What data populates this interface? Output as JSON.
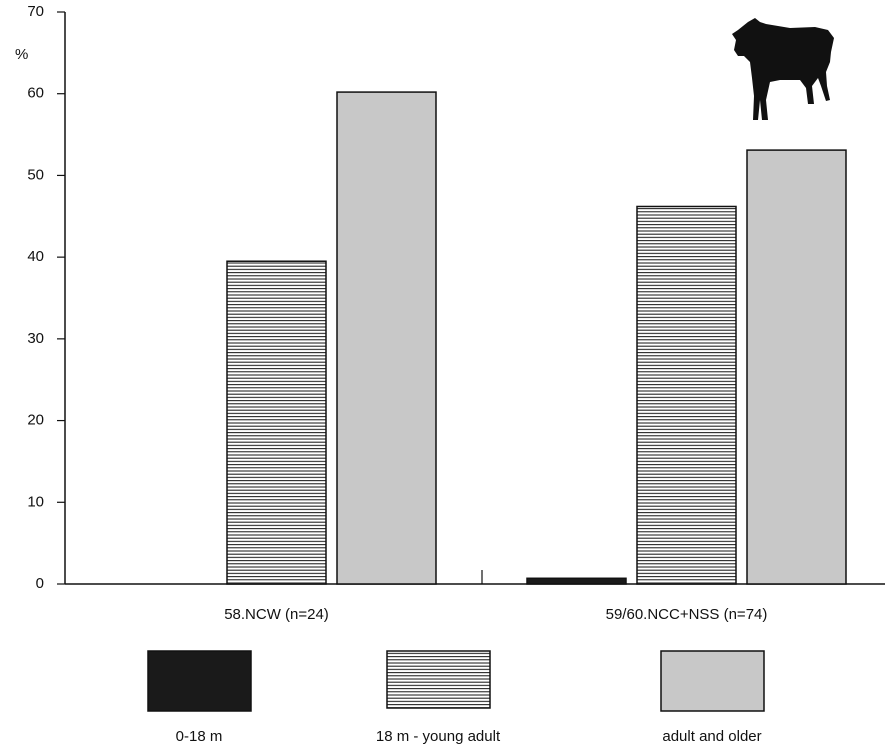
{
  "chart_data": {
    "type": "bar",
    "y_label": "%",
    "categories": [
      "58.NCW (n=24)",
      "59/60.NCC+NSS (n=74)"
    ],
    "series": [
      {
        "name": "0-18 m",
        "color": "#1a1a1a",
        "values": [
          0,
          0.7
        ]
      },
      {
        "name": "18 m - young adult",
        "color": "#ffffff",
        "pattern": "horizontal-lines",
        "values": [
          39.5,
          46.2
        ]
      },
      {
        "name": "adult and older",
        "color": "#c8c8c8",
        "values": [
          60.2,
          53.1
        ]
      }
    ],
    "ylim": [
      0,
      70
    ],
    "yticks": [
      0,
      10,
      20,
      30,
      40,
      50,
      60,
      70
    ],
    "grid": false
  }
}
